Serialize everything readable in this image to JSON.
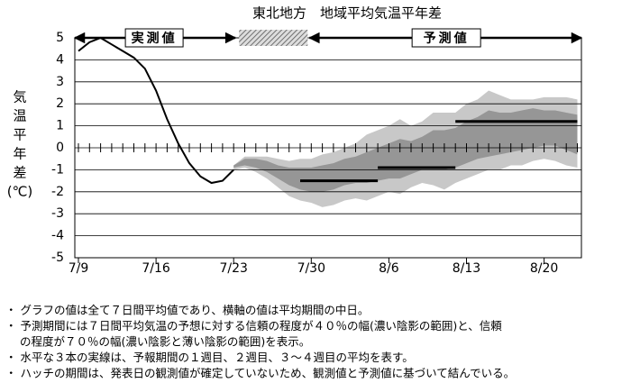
{
  "chart_data": {
    "type": "line",
    "title": "東北地方　地域平均気温平年差",
    "ylabel_chars": [
      "気",
      "温",
      "平",
      "年",
      "差",
      "(℃)"
    ],
    "header": {
      "observed_label": "実測値",
      "forecast_label": "予測値"
    },
    "x": [
      "7/9",
      "7/10",
      "7/11",
      "7/12",
      "7/13",
      "7/14",
      "7/15",
      "7/16",
      "7/17",
      "7/18",
      "7/19",
      "7/20",
      "7/21",
      "7/22",
      "7/23",
      "7/24",
      "7/25",
      "7/26",
      "7/27",
      "7/28",
      "7/29",
      "7/30",
      "7/31",
      "8/1",
      "8/2",
      "8/3",
      "8/4",
      "8/5",
      "8/6",
      "8/7",
      "8/8",
      "8/9",
      "8/10",
      "8/11",
      "8/12",
      "8/13",
      "8/14",
      "8/15",
      "8/16",
      "8/17",
      "8/18",
      "8/19",
      "8/20",
      "8/21",
      "8/22",
      "8/23"
    ],
    "xticks": [
      "7/9",
      "7/16",
      "7/23",
      "7/30",
      "8/6",
      "8/13",
      "8/20"
    ],
    "ylim": [
      -5,
      5
    ],
    "yticks": [
      -5,
      -4,
      -3,
      -2,
      -1,
      0,
      1,
      2,
      3,
      4,
      5
    ],
    "grid": true,
    "observed": {
      "color": "#000000",
      "values": [
        4.4,
        4.8,
        5.0,
        4.7,
        4.4,
        4.1,
        3.6,
        2.6,
        1.3,
        0.2,
        -0.7,
        -1.3,
        -1.6,
        -1.5,
        -1.0,
        null,
        null,
        null,
        null,
        null,
        null,
        null,
        null,
        null,
        null,
        null,
        null,
        null,
        null,
        null,
        null,
        null,
        null,
        null,
        null,
        null,
        null,
        null,
        null,
        null,
        null,
        null,
        null,
        null,
        null,
        null
      ]
    },
    "bands": [
      {
        "color": "#c8c8c8",
        "upper": [
          null,
          null,
          null,
          null,
          null,
          null,
          null,
          null,
          null,
          null,
          null,
          null,
          null,
          null,
          -0.8,
          -0.4,
          -0.4,
          -0.4,
          -0.5,
          -0.6,
          -0.5,
          -0.5,
          -0.3,
          -0.2,
          0.0,
          0.2,
          0.6,
          0.8,
          1.0,
          1.3,
          1.0,
          1.2,
          1.6,
          1.6,
          1.6,
          2.0,
          2.2,
          2.6,
          2.4,
          2.2,
          2.2,
          2.2,
          2.3,
          2.3,
          2.3,
          2.2
        ],
        "lower": [
          null,
          null,
          null,
          null,
          null,
          null,
          null,
          null,
          null,
          null,
          null,
          null,
          null,
          null,
          -1.0,
          -0.9,
          -1.1,
          -1.4,
          -1.8,
          -2.2,
          -2.4,
          -2.5,
          -2.7,
          -2.6,
          -2.4,
          -2.3,
          -2.4,
          -2.2,
          -2.0,
          -2.1,
          -1.8,
          -1.6,
          -1.7,
          -1.9,
          -1.6,
          -1.4,
          -1.2,
          -1.0,
          -1.0,
          -0.8,
          -0.8,
          -0.6,
          -0.5,
          -0.6,
          -0.8,
          -0.9
        ]
      },
      {
        "color": "#969696",
        "upper": [
          null,
          null,
          null,
          null,
          null,
          null,
          null,
          null,
          null,
          null,
          null,
          null,
          null,
          null,
          -0.8,
          -0.5,
          -0.5,
          -0.6,
          -0.8,
          -0.9,
          -0.9,
          -0.9,
          -0.8,
          -0.7,
          -0.5,
          -0.4,
          -0.2,
          0.0,
          0.2,
          0.4,
          0.3,
          0.5,
          0.8,
          0.8,
          0.9,
          1.2,
          1.4,
          1.7,
          1.6,
          1.6,
          1.7,
          1.8,
          1.7,
          1.7,
          1.6,
          1.5
        ],
        "lower": [
          null,
          null,
          null,
          null,
          null,
          null,
          null,
          null,
          null,
          null,
          null,
          null,
          null,
          null,
          -0.9,
          -0.8,
          -0.9,
          -1.1,
          -1.4,
          -1.7,
          -1.9,
          -2.0,
          -2.0,
          -1.9,
          -1.7,
          -1.6,
          -1.6,
          -1.5,
          -1.4,
          -1.4,
          -1.2,
          -1.0,
          -1.0,
          -1.0,
          -0.9,
          -0.7,
          -0.5,
          -0.4,
          -0.3,
          -0.2,
          -0.1,
          0.0,
          0.1,
          0.1,
          -0.1,
          -0.3
        ]
      }
    ],
    "week_means": [
      {
        "start": "7/29",
        "end": "8/5",
        "value": -1.5
      },
      {
        "start": "8/5",
        "end": "8/12",
        "value": -0.9
      },
      {
        "start": "8/12",
        "end": "8/23",
        "value": 1.2
      }
    ],
    "notes": [
      "・ グラフの値は全て７日間平均値であり、横軸の値は平均期間の中日。",
      "・ 予測期間には７日間平均気温の予想に対する信頼の程度が４０％の幅(濃い陰影の範囲)と、信頼",
      "の程度が７０％の幅(濃い陰影と薄い陰影の範囲)を表示。",
      "・ 水平な３本の実線は、予報期間の１週目、２週目、３～４週目の平均を表す。",
      "・ ハッチの期間は、発表日の観測値が確定していないため、観測値と予測値に基づいて結んでいる。"
    ]
  }
}
